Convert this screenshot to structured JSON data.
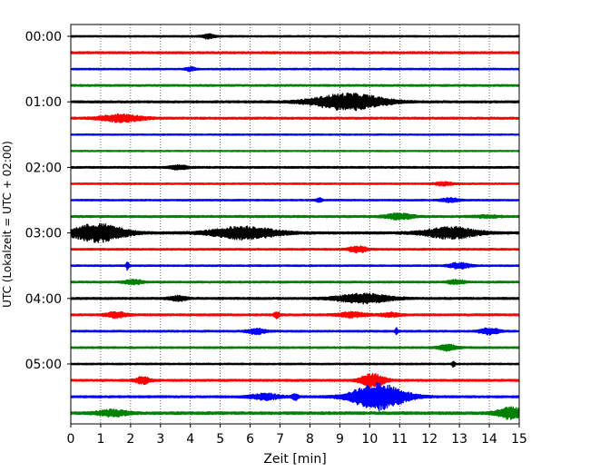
{
  "chart_data": {
    "type": "line",
    "subtype": "helicorder",
    "title": "",
    "xlabel": "Zeit  [min]",
    "ylabel": "UTC (Lokalzeit = UTC + 02:00)",
    "xlim": [
      0,
      15
    ],
    "x_ticks": [
      0,
      1,
      2,
      3,
      4,
      5,
      6,
      7,
      8,
      9,
      10,
      11,
      12,
      13,
      14,
      15
    ],
    "x_tick_labels": [
      "0",
      "1",
      "2",
      "3",
      "4",
      "5",
      "6",
      "7",
      "8",
      "9",
      "10",
      "11",
      "12",
      "13",
      "14",
      "15"
    ],
    "y_tick_labels": [
      "00:00",
      "01:00",
      "02:00",
      "03:00",
      "04:00",
      "05:00"
    ],
    "y_tick_rows": [
      0,
      4,
      8,
      12,
      16,
      20
    ],
    "grid": "vertical dotted",
    "row_minutes": 15,
    "row_count": 24,
    "color_cycle": [
      "#000000",
      "#ff0000",
      "#0000ff",
      "#008000"
    ],
    "baseline_noise": [
      0.12,
      0.16,
      0.12,
      0.14,
      0.16,
      0.16,
      0.1,
      0.1,
      0.14,
      0.12,
      0.12,
      0.16,
      0.18,
      0.14,
      0.12,
      0.14,
      0.16,
      0.16,
      0.14,
      0.14,
      0.12,
      0.16,
      0.16,
      0.2
    ],
    "events": [
      {
        "row": 0,
        "t": 4.6,
        "amp": 0.35,
        "dur": 0.2
      },
      {
        "row": 2,
        "t": 4.0,
        "amp": 0.3,
        "dur": 0.15
      },
      {
        "row": 4,
        "t": 9.3,
        "amp": 1.25,
        "dur": 1.2
      },
      {
        "row": 5,
        "t": 1.7,
        "amp": 0.55,
        "dur": 0.7
      },
      {
        "row": 8,
        "t": 3.6,
        "amp": 0.3,
        "dur": 0.3
      },
      {
        "row": 9,
        "t": 12.5,
        "amp": 0.25,
        "dur": 0.3
      },
      {
        "row": 10,
        "t": 8.3,
        "amp": 0.3,
        "dur": 0.1
      },
      {
        "row": 10,
        "t": 12.7,
        "amp": 0.3,
        "dur": 0.3
      },
      {
        "row": 11,
        "t": 11.0,
        "amp": 0.45,
        "dur": 0.45
      },
      {
        "row": 11,
        "t": 13.9,
        "amp": 0.15,
        "dur": 0.4
      },
      {
        "row": 12,
        "t": 0.9,
        "amp": 1.35,
        "dur": 0.9
      },
      {
        "row": 12,
        "t": 5.8,
        "amp": 0.95,
        "dur": 1.1
      },
      {
        "row": 12,
        "t": 12.7,
        "amp": 0.85,
        "dur": 0.9
      },
      {
        "row": 13,
        "t": 9.6,
        "amp": 0.45,
        "dur": 0.3
      },
      {
        "row": 14,
        "t": 1.9,
        "amp": 0.7,
        "dur": 0.05
      },
      {
        "row": 14,
        "t": 13.0,
        "amp": 0.45,
        "dur": 0.35
      },
      {
        "row": 15,
        "t": 2.1,
        "amp": 0.35,
        "dur": 0.3
      },
      {
        "row": 15,
        "t": 12.9,
        "amp": 0.3,
        "dur": 0.3
      },
      {
        "row": 16,
        "t": 3.6,
        "amp": 0.35,
        "dur": 0.3
      },
      {
        "row": 16,
        "t": 9.8,
        "amp": 0.7,
        "dur": 0.9
      },
      {
        "row": 17,
        "t": 1.5,
        "amp": 0.4,
        "dur": 0.35
      },
      {
        "row": 17,
        "t": 6.9,
        "amp": 0.45,
        "dur": 0.1
      },
      {
        "row": 17,
        "t": 9.4,
        "amp": 0.35,
        "dur": 0.5
      },
      {
        "row": 17,
        "t": 10.7,
        "amp": 0.3,
        "dur": 0.3
      },
      {
        "row": 18,
        "t": 6.2,
        "amp": 0.4,
        "dur": 0.3
      },
      {
        "row": 18,
        "t": 10.9,
        "amp": 0.45,
        "dur": 0.05
      },
      {
        "row": 18,
        "t": 14.0,
        "amp": 0.45,
        "dur": 0.35
      },
      {
        "row": 19,
        "t": 12.6,
        "amp": 0.45,
        "dur": 0.3
      },
      {
        "row": 20,
        "t": 12.8,
        "amp": 0.55,
        "dur": 0.05
      },
      {
        "row": 21,
        "t": 2.4,
        "amp": 0.5,
        "dur": 0.25
      },
      {
        "row": 21,
        "t": 10.1,
        "amp": 1.0,
        "dur": 0.4
      },
      {
        "row": 22,
        "t": 6.5,
        "amp": 0.45,
        "dur": 0.5
      },
      {
        "row": 22,
        "t": 7.5,
        "amp": 0.5,
        "dur": 0.1
      },
      {
        "row": 22,
        "t": 10.3,
        "amp": 2.05,
        "dur": 0.9
      },
      {
        "row": 23,
        "t": 1.4,
        "amp": 0.45,
        "dur": 0.5
      },
      {
        "row": 23,
        "t": 14.7,
        "amp": 0.85,
        "dur": 0.45
      }
    ]
  }
}
